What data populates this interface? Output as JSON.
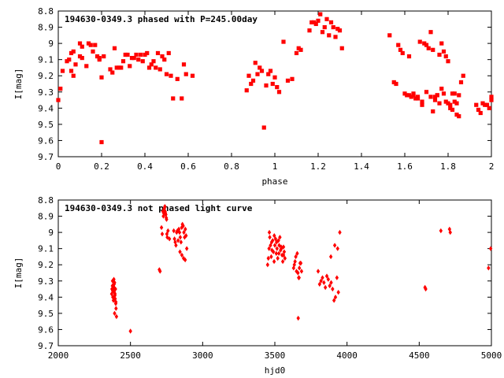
{
  "chart_data": [
    {
      "type": "scatter",
      "title": "194630-0349.3 phased with P=245.00day",
      "xlabel": "phase",
      "ylabel": "I[mag]",
      "xlim": [
        0,
        2
      ],
      "ylim": [
        9.7,
        8.8
      ],
      "y_inverted": true,
      "xticks": [
        "0",
        "0.2",
        "0.4",
        "0.6",
        "0.8",
        "1",
        "1.2",
        "1.4",
        "1.6",
        "1.8",
        "2"
      ],
      "yticks": [
        "8.8",
        "8.9",
        "9",
        "9.1",
        "9.2",
        "9.3",
        "9.4",
        "9.5",
        "9.6",
        "9.7"
      ],
      "marker": "filled-square",
      "color": "#ff0000",
      "series": [
        {
          "x": [
            0.0,
            0.01,
            0.02,
            0.04,
            0.05,
            0.06,
            0.06,
            0.07,
            0.07,
            0.08,
            0.1,
            0.1,
            0.11,
            0.11,
            0.13,
            0.14,
            0.15,
            0.16,
            0.17,
            0.18,
            0.19,
            0.19,
            0.2,
            0.2,
            0.21,
            0.24,
            0.25,
            0.26,
            0.27,
            0.28,
            0.29,
            0.3,
            0.31,
            0.32,
            0.33,
            0.34,
            0.35,
            0.36,
            0.37,
            0.38,
            0.39,
            0.4,
            0.41,
            0.42,
            0.43,
            0.44,
            0.45,
            0.46,
            0.47,
            0.48,
            0.49,
            0.5,
            0.51,
            0.52,
            0.53,
            0.55,
            0.57,
            0.58,
            0.59,
            0.62,
            0.87,
            0.88,
            0.89,
            0.9,
            0.91,
            0.92,
            0.93,
            0.94,
            0.95,
            0.96,
            0.97,
            0.98,
            0.99,
            1.0,
            1.01,
            1.02,
            1.04,
            1.06,
            1.08,
            1.1,
            1.11,
            1.12,
            1.16,
            1.17,
            1.18,
            1.19,
            1.2,
            1.21,
            1.22,
            1.23,
            1.24,
            1.25,
            1.26,
            1.27,
            1.28,
            1.29,
            1.3,
            1.31,
            1.53,
            1.55,
            1.56,
            1.57,
            1.58,
            1.59,
            1.6,
            1.61,
            1.62,
            1.63,
            1.64,
            1.65,
            1.66,
            1.67,
            1.68,
            1.69,
            1.7,
            1.71,
            1.72,
            1.73,
            1.74,
            1.75,
            1.76,
            1.77,
            1.78,
            1.79,
            1.8,
            1.81,
            1.82,
            1.83,
            1.84,
            1.85,
            1.86,
            1.87,
            1.62,
            1.64,
            1.66,
            1.68,
            1.7,
            1.72,
            1.73,
            1.74,
            1.75,
            1.76,
            1.77,
            1.78,
            1.79,
            1.8,
            1.81,
            1.82,
            1.83,
            1.84,
            1.85,
            1.93,
            1.94,
            1.95,
            1.96,
            1.97,
            1.98,
            1.99,
            2.0,
            2.0
          ],
          "y": [
            9.35,
            9.28,
            9.17,
            9.11,
            9.1,
            9.06,
            9.17,
            9.2,
            9.05,
            9.13,
            9.0,
            9.08,
            9.09,
            9.02,
            9.14,
            9.0,
            9.01,
            9.05,
            9.01,
            9.08,
            9.1,
            9.09,
            9.61,
            9.21,
            9.08,
            9.16,
            9.18,
            9.03,
            9.15,
            9.15,
            9.15,
            9.11,
            9.07,
            9.07,
            9.14,
            9.09,
            9.09,
            9.07,
            9.1,
            9.07,
            9.11,
            9.07,
            9.06,
            9.15,
            9.13,
            9.11,
            9.15,
            9.06,
            9.16,
            9.08,
            9.1,
            9.19,
            9.06,
            9.2,
            9.34,
            9.22,
            9.34,
            9.13,
            9.19,
            9.2,
            9.29,
            9.2,
            9.25,
            9.23,
            9.12,
            9.19,
            9.15,
            9.17,
            9.52,
            9.26,
            9.19,
            9.17,
            9.25,
            9.21,
            9.27,
            9.3,
            8.99,
            9.23,
            9.22,
            9.06,
            9.03,
            9.04,
            8.92,
            8.87,
            8.87,
            8.88,
            8.86,
            8.82,
            8.93,
            8.9,
            8.85,
            8.95,
            8.87,
            8.9,
            8.96,
            8.91,
            8.92,
            9.03,
            8.95,
            9.24,
            9.25,
            9.01,
            9.04,
            9.06,
            9.31,
            9.32,
            9.08,
            9.33,
            9.31,
            9.34,
            9.33,
            8.99,
            9.38,
            9.0,
            9.01,
            9.03,
            8.93,
            9.04,
            9.33,
            9.32,
            9.07,
            9.0,
            9.05,
            9.08,
            9.11,
            9.38,
            9.41,
            9.31,
            9.37,
            9.32,
            9.24,
            9.2,
            9.32,
            9.32,
            9.34,
            9.36,
            9.3,
            9.33,
            9.42,
            9.35,
            9.32,
            9.37,
            9.28,
            9.31,
            9.36,
            9.37,
            9.4,
            9.31,
            9.36,
            9.44,
            9.45,
            9.38,
            9.41,
            9.43,
            9.37,
            9.38,
            9.38,
            9.4,
            9.35,
            9.33
          ]
        }
      ]
    },
    {
      "type": "scatter",
      "title": "194630-0349.3 not phased light curve",
      "xlabel": "hjd0",
      "ylabel": "I[mag]",
      "xlim": [
        2000,
        5000
      ],
      "ylim": [
        9.7,
        8.8
      ],
      "y_inverted": true,
      "xticks": [
        "2000",
        "2500",
        "3000",
        "3500",
        "4000",
        "4500",
        "5000"
      ],
      "yticks": [
        "8.8",
        "8.9",
        "9",
        "9.1",
        "9.2",
        "9.3",
        "9.4",
        "9.5",
        "9.6",
        "9.7"
      ],
      "marker": "diamond",
      "color": "#ff0000",
      "series": [
        {
          "x": [
            2370,
            2372,
            2375,
            2377,
            2378,
            2380,
            2382,
            2384,
            2386,
            2388,
            2390,
            2392,
            2394,
            2396,
            2398,
            2400,
            2376,
            2381,
            2387,
            2393,
            2399,
            2385,
            2390,
            2383,
            2403,
            2500,
            2700,
            2705,
            2715,
            2720,
            2725,
            2728,
            2730,
            2732,
            2735,
            2738,
            2740,
            2742,
            2745,
            2748,
            2750,
            2752,
            2755,
            2760,
            2770,
            2800,
            2805,
            2810,
            2815,
            2820,
            2825,
            2830,
            2835,
            2840,
            2845,
            2850,
            2855,
            2860,
            2865,
            2870,
            2875,
            2880,
            2885,
            2890,
            2843,
            2856,
            2868,
            2879,
            3450,
            3455,
            3460,
            3465,
            3470,
            3475,
            3480,
            3485,
            3490,
            3495,
            3500,
            3505,
            3510,
            3515,
            3520,
            3525,
            3530,
            3535,
            3540,
            3545,
            3550,
            3555,
            3560,
            3565,
            3570,
            3462,
            3478,
            3496,
            3512,
            3528,
            3544,
            3560,
            3630,
            3635,
            3640,
            3645,
            3650,
            3655,
            3660,
            3665,
            3670,
            3675,
            3680,
            3685,
            3662,
            3668,
            3800,
            3810,
            3820,
            3830,
            3840,
            3850,
            3860,
            3870,
            3880,
            3890,
            3900,
            3910,
            3920,
            3930,
            3940,
            3950,
            3888,
            3915,
            3935,
            4540,
            4545,
            4650,
            4710,
            4715,
            4980,
            4995
          ],
          "y": [
            9.38,
            9.35,
            9.33,
            9.36,
            9.4,
            9.3,
            9.42,
            9.36,
            9.34,
            9.37,
            9.31,
            9.39,
            9.41,
            9.35,
            9.44,
            9.47,
            9.3,
            9.33,
            9.32,
            9.38,
            9.43,
            9.29,
            9.5,
            9.36,
            9.52,
            9.61,
            9.23,
            9.24,
            8.97,
            9.01,
            8.87,
            8.9,
            8.88,
            8.86,
            8.85,
            8.84,
            8.87,
            8.88,
            8.89,
            8.91,
            8.92,
            9.01,
            9.03,
            8.99,
            9.04,
            8.99,
            9.04,
            9.06,
            9.08,
            9.0,
            8.99,
            9.05,
            8.98,
            9.0,
            9.03,
            9.06,
            8.97,
            8.95,
            8.96,
            9.0,
            9.03,
            8.98,
            9.02,
            9.1,
            9.12,
            9.14,
            9.16,
            9.17,
            9.2,
            9.16,
            9.1,
            9.03,
            9.08,
            9.15,
            9.11,
            9.05,
            9.12,
            9.18,
            9.08,
            9.04,
            9.13,
            9.1,
            9.16,
            9.05,
            9.08,
            9.03,
            9.11,
            9.1,
            9.14,
            9.18,
            9.09,
            9.12,
            9.16,
            9.0,
            9.06,
            9.02,
            9.06,
            9.13,
            9.09,
            9.14,
            9.22,
            9.2,
            9.18,
            9.15,
            9.24,
            9.13,
            9.25,
            9.28,
            9.22,
            9.19,
            9.19,
            9.24,
            9.53,
            9.28,
            9.24,
            9.32,
            9.3,
            9.28,
            9.31,
            9.34,
            9.27,
            9.29,
            9.33,
            9.31,
            9.35,
            9.42,
            9.4,
            9.28,
            9.37,
            9.0,
            9.15,
            9.08,
            9.1,
            9.34,
            9.35,
            8.99,
            8.98,
            9.0,
            9.22,
            9.1
          ]
        }
      ]
    }
  ]
}
